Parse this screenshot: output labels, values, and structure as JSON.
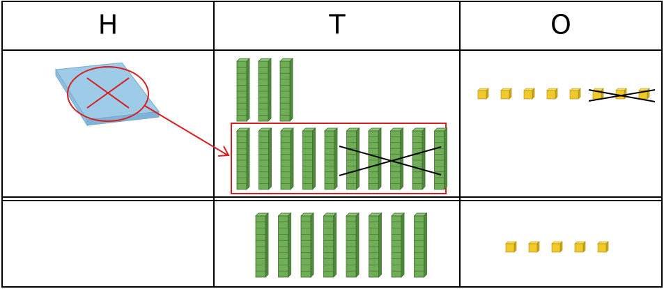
{
  "headers": [
    "H",
    "T",
    "O"
  ]
}
